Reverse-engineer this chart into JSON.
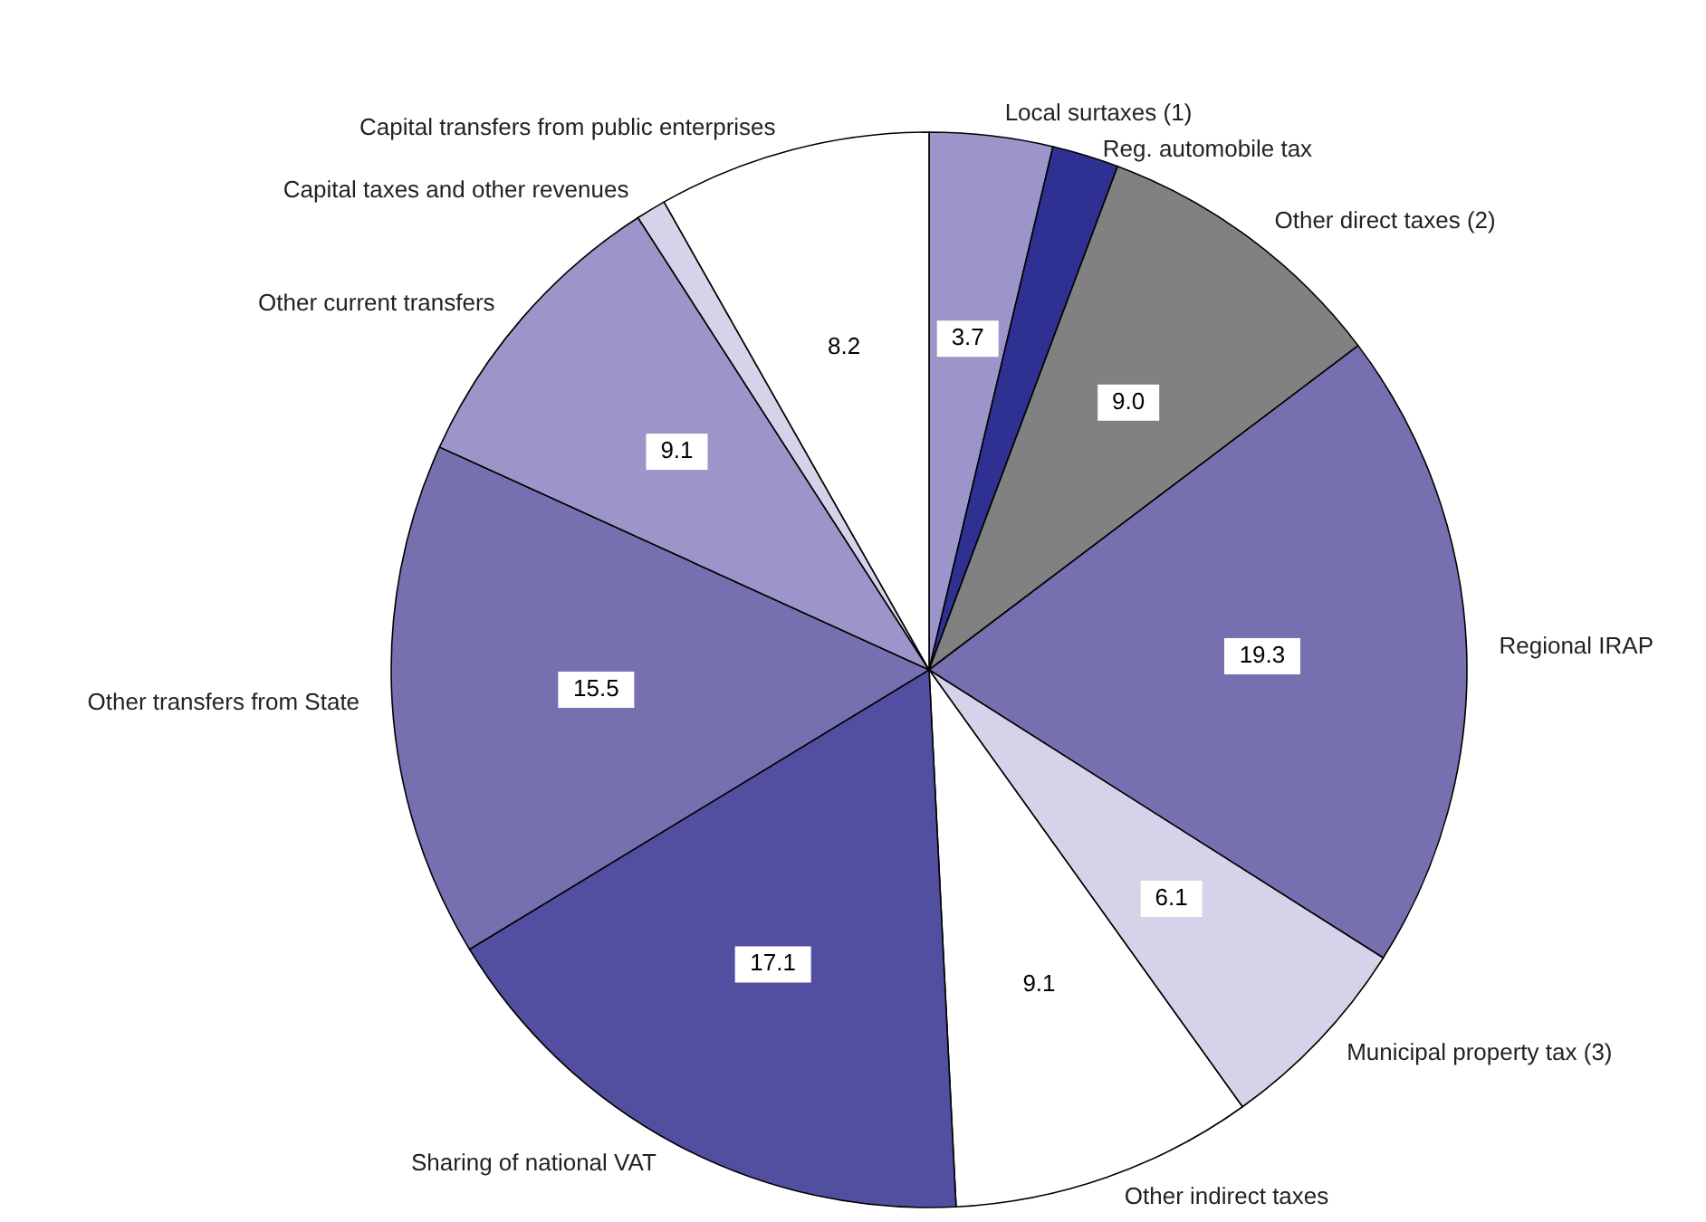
{
  "chart_data": {
    "type": "pie",
    "categories": [
      "Local surtaxes (1)",
      "Reg. automobile tax",
      "Other direct taxes (2)",
      "Regional IRAP",
      "Municipal property tax (3)",
      "Other indirect taxes",
      "Sharing of national VAT",
      "Other transfers from State",
      "Other current transfers",
      "Capital taxes and other revenues",
      "Capital transfers from public enterprises"
    ],
    "values": [
      3.7,
      2.0,
      9.0,
      19.3,
      6.1,
      9.1,
      17.1,
      15.5,
      9.1,
      0.9,
      8.2
    ],
    "value_labels": [
      "3.7",
      null,
      "9.0",
      "19.3",
      "6.1",
      "9.1",
      "17.1",
      "15.5",
      "9.1",
      null,
      "8.2"
    ],
    "colors": [
      "#9c95c9",
      "#2e3192",
      "#818181",
      "#7670b1",
      "#d5d2e9",
      "#ffffff",
      "#524ea0",
      "#7670b1",
      "#9c95c9",
      "#d5d2e9",
      "#ffffff"
    ]
  }
}
